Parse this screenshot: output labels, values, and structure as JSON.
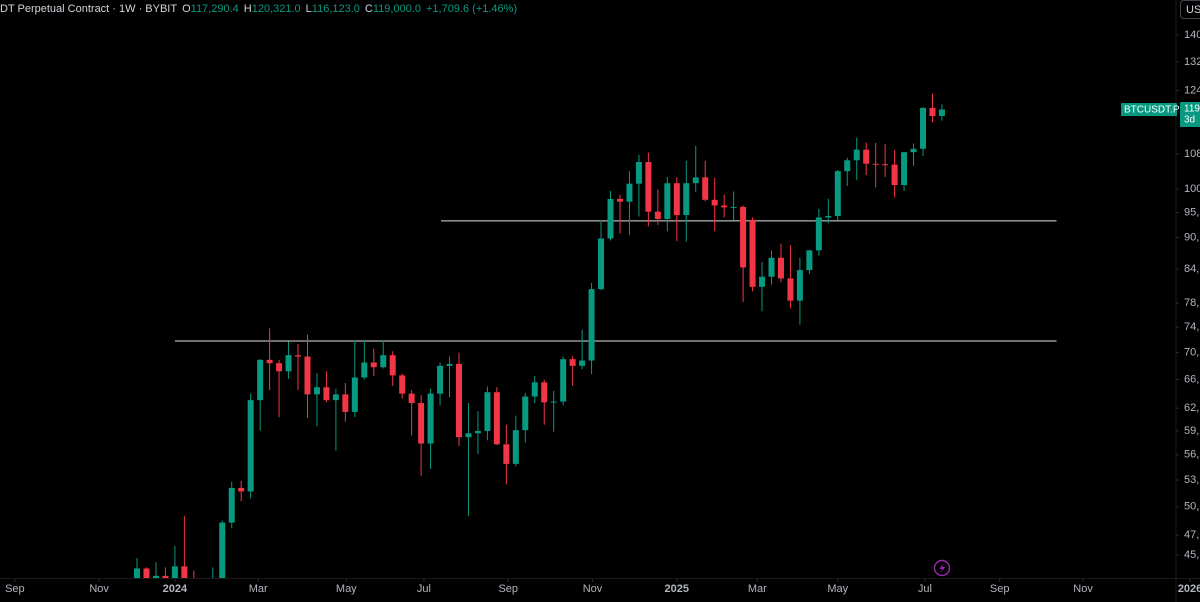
{
  "chart_data": {
    "type": "candlestick",
    "header": {
      "symbol": "DT Perpetual Contract · 1W · BYBIT",
      "fields": [
        {
          "key": "O",
          "value": "117,290.4"
        },
        {
          "key": "H",
          "value": "120,321.0"
        },
        {
          "key": "L",
          "value": "116,123.0"
        },
        {
          "key": "C",
          "value": "119,000.0"
        }
      ],
      "change": "+1,709.6 (+1.46%)"
    },
    "open": [
      39970,
      43700,
      41400,
      43000,
      42300,
      43900,
      41700,
      41600,
      42000,
      42600,
      48300,
      52100,
      51700,
      63100,
      68900,
      68400,
      67200,
      69600,
      69400,
      63900,
      64900,
      63100,
      63900,
      61500,
      66300,
      68500,
      67800,
      69600,
      66600,
      64000,
      62700,
      57400,
      64000,
      68000,
      68300,
      58200,
      58700,
      59000,
      64200,
      57300,
      54900,
      59100,
      63600,
      65600,
      62800,
      62900,
      69000,
      68000,
      68800,
      80400,
      89800,
      97900,
      97300,
      101200,
      106100,
      95200,
      93700,
      101300,
      94500,
      101300,
      102600,
      97700,
      96500,
      96100,
      96200,
      93500,
      80800,
      82600,
      86100,
      82300,
      78400,
      83800,
      87500,
      94000,
      94300,
      104000,
      106500,
      109000,
      105700,
      105600,
      105500,
      100900,
      108400,
      109200,
      119400,
      117290.4
    ],
    "high": [
      44700,
      43800,
      44300,
      43800,
      45900,
      49000,
      43500,
      42200,
      43800,
      48500,
      52800,
      52900,
      64000,
      69000,
      73800,
      68900,
      71700,
      71300,
      72800,
      66900,
      67200,
      64700,
      65500,
      71900,
      71900,
      70600,
      71900,
      70200,
      66900,
      64500,
      63800,
      64700,
      68500,
      69400,
      70000,
      62700,
      61600,
      65000,
      64900,
      59800,
      61000,
      64100,
      66500,
      66000,
      64400,
      69400,
      69500,
      73600,
      81500,
      93400,
      99600,
      98800,
      104000,
      107800,
      108300,
      99900,
      102700,
      102700,
      106400,
      109900,
      106400,
      102500,
      98800,
      99500,
      96500,
      94000,
      85300,
      87500,
      88800,
      88500,
      86100,
      87600,
      95800,
      97900,
      104300,
      107100,
      111900,
      110700,
      110600,
      110400,
      108900,
      108500,
      110500,
      119600,
      123200,
      120321
    ],
    "low": [
      39900,
      40200,
      40500,
      41300,
      40700,
      41500,
      40300,
      38500,
      41800,
      42200,
      47700,
      50600,
      50900,
      59000,
      64500,
      60800,
      66100,
      64500,
      60700,
      59600,
      62800,
      56500,
      60200,
      60800,
      66000,
      66500,
      67600,
      65100,
      63300,
      58400,
      53500,
      54300,
      62400,
      63500,
      57100,
      49000,
      56100,
      57800,
      57200,
      52500,
      54600,
      57500,
      62700,
      59800,
      58900,
      62400,
      65100,
      67500,
      66800,
      80200,
      89400,
      90800,
      90500,
      94200,
      92200,
      92500,
      91200,
      89300,
      89200,
      99400,
      97400,
      91200,
      94000,
      93400,
      78200,
      80000,
      76600,
      81200,
      81600,
      77100,
      74400,
      83100,
      86500,
      92800,
      93400,
      100700,
      102000,
      103100,
      100400,
      102700,
      98200,
      99600,
      105200,
      107500,
      115700,
      116123
    ],
    "close": [
      43700,
      41400,
      43000,
      42300,
      43900,
      41700,
      41600,
      42000,
      42600,
      48300,
      52100,
      51700,
      63100,
      68900,
      68400,
      67200,
      69600,
      69400,
      63900,
      64900,
      63100,
      63900,
      61500,
      66300,
      68500,
      67800,
      69600,
      66600,
      64000,
      62700,
      57400,
      64000,
      68000,
      68300,
      58200,
      58700,
      59000,
      64200,
      57300,
      54900,
      59100,
      63600,
      65600,
      62800,
      62900,
      69000,
      68000,
      68800,
      80400,
      89800,
      97900,
      97300,
      101200,
      106100,
      95200,
      93700,
      101300,
      94500,
      101300,
      102600,
      97700,
      96500,
      96100,
      96200,
      84300,
      80800,
      82600,
      86100,
      82300,
      78400,
      83800,
      87500,
      94000,
      94300,
      104000,
      106500,
      109000,
      105700,
      105600,
      105500,
      100900,
      108400,
      109200,
      119400,
      117300,
      119000
    ],
    "up_color": "#089981",
    "down_color": "#f23645",
    "log_scale": true,
    "ylim": [
      42800,
      151100
    ],
    "yticks": [
      {
        "value": 140000,
        "label": "140"
      },
      {
        "value": 132000,
        "label": "132"
      },
      {
        "value": 124000,
        "label": "124"
      },
      {
        "value": 108000,
        "label": "108"
      },
      {
        "value": 100000,
        "label": "100"
      },
      {
        "value": 95000,
        "label": "95,"
      },
      {
        "value": 90000,
        "label": "90,"
      },
      {
        "value": 84000,
        "label": "84,"
      },
      {
        "value": 78000,
        "label": "78,"
      },
      {
        "value": 74000,
        "label": "74,"
      },
      {
        "value": 70000,
        "label": "70,"
      },
      {
        "value": 66000,
        "label": "66,"
      },
      {
        "value": 62000,
        "label": "62,"
      },
      {
        "value": 59000,
        "label": "59,"
      },
      {
        "value": 56000,
        "label": "56,"
      },
      {
        "value": 53000,
        "label": "53,"
      },
      {
        "value": 50000,
        "label": "50,"
      },
      {
        "value": 47000,
        "label": "47,"
      },
      {
        "value": 45000,
        "label": "45,"
      }
    ],
    "xlim": [
      -14.47,
      112.25
    ],
    "xticks": [
      {
        "value": -12.9,
        "label": "Sep"
      },
      {
        "value": -4.0,
        "label": "Nov"
      },
      {
        "value": 4.0,
        "label": "2024"
      },
      {
        "value": 12.8,
        "label": "Mar"
      },
      {
        "value": 22.1,
        "label": "May"
      },
      {
        "value": 30.3,
        "label": "Jul"
      },
      {
        "value": 39.2,
        "label": "Sep"
      },
      {
        "value": 48.1,
        "label": "Nov"
      },
      {
        "value": 57.0,
        "label": "2025"
      },
      {
        "value": 65.5,
        "label": "Mar"
      },
      {
        "value": 74.0,
        "label": "May"
      },
      {
        "value": 83.2,
        "label": "Jul"
      },
      {
        "value": 91.1,
        "label": "Sep"
      },
      {
        "value": 99.9,
        "label": "Nov"
      },
      {
        "value": 111.2,
        "label": "2026"
      }
    ],
    "hlines": [
      {
        "value": 93300,
        "x": [
          32.1,
          97.1
        ]
      },
      {
        "value": 71800,
        "x": [
          4.0,
          97.1
        ]
      }
    ],
    "price_tag": {
      "symbol": "BTCUSDT.P",
      "price": "119",
      "countdown": "3d"
    },
    "currency": "US"
  }
}
